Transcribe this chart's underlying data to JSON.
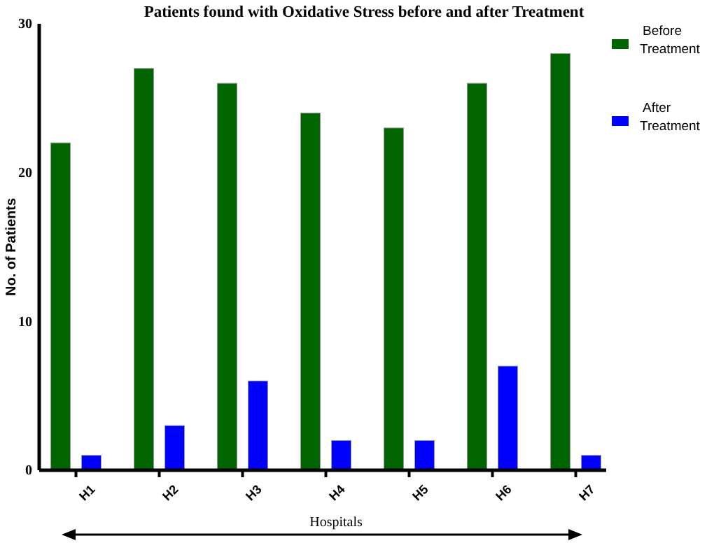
{
  "chart_data": {
    "type": "bar",
    "title": "Patients found with Oxidative Stress before and after Treatment",
    "xlabel": "Hospitals",
    "ylabel": "No. of Patients",
    "categories": [
      "H1",
      "H2",
      "H3",
      "H4",
      "H5",
      "H6",
      "H7"
    ],
    "series": [
      {
        "name": "Before Treatment",
        "color": "#006400",
        "values": [
          22,
          27,
          26,
          24,
          23,
          26,
          28
        ]
      },
      {
        "name": "After Treatment",
        "color": "#0000ff",
        "values": [
          1,
          3,
          6,
          2,
          2,
          7,
          1
        ]
      }
    ],
    "ylim": [
      0,
      30
    ],
    "yticks": [
      0,
      10,
      20,
      30
    ],
    "grid": false,
    "legend": "right"
  }
}
